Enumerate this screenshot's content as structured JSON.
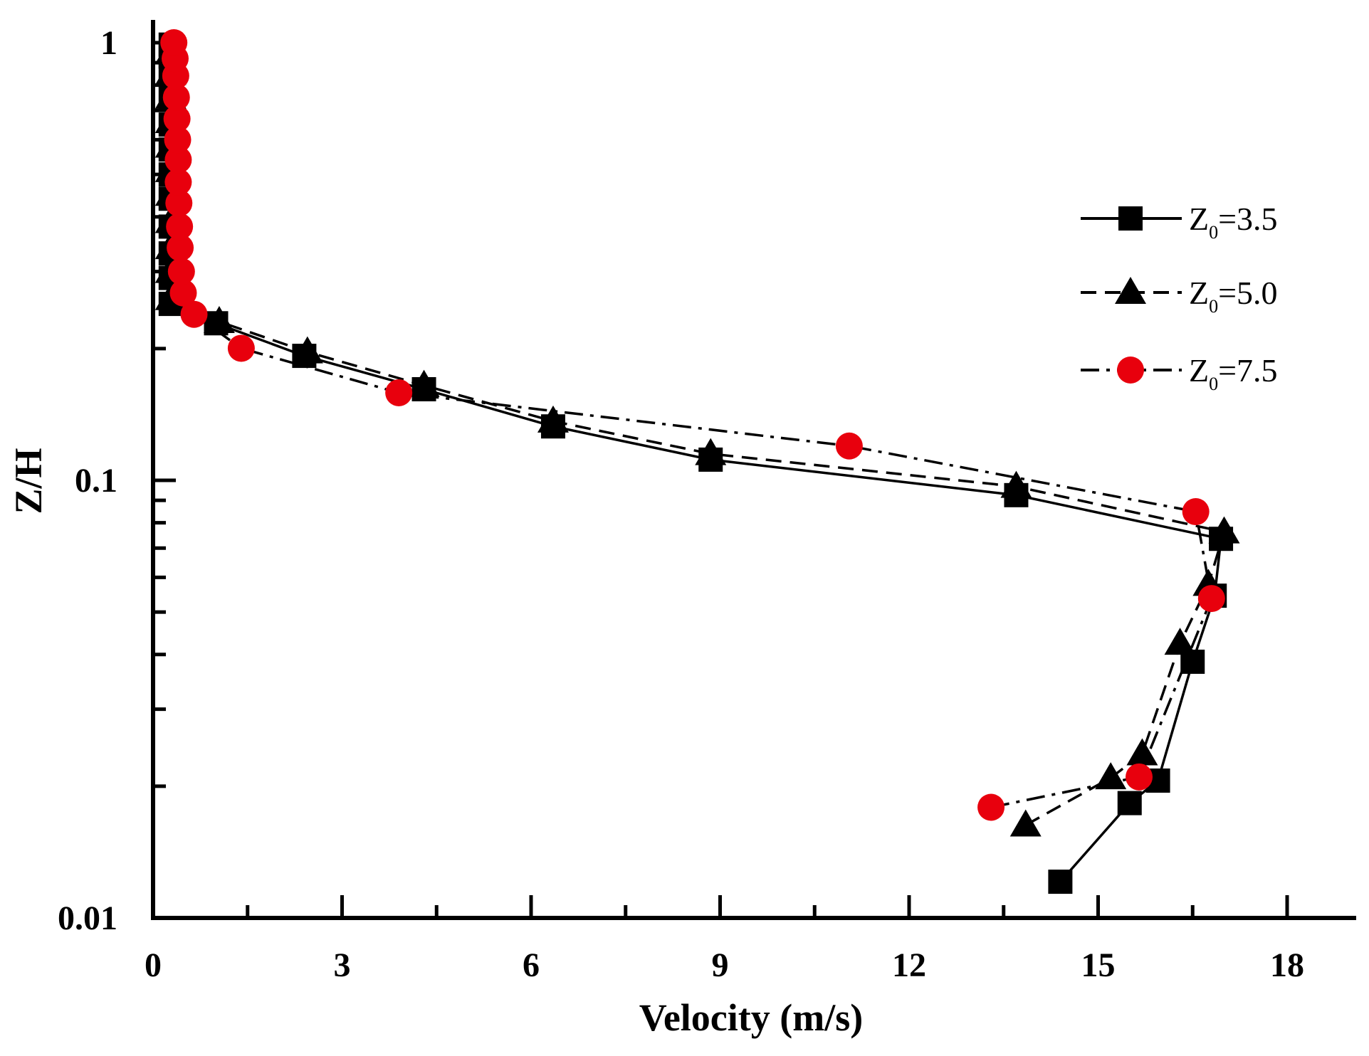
{
  "chart_data": {
    "type": "line",
    "title": "",
    "xlabel": "Velocity (m/s)",
    "ylabel": "Z/H",
    "xlim": [
      0,
      19
    ],
    "ylim": [
      0.01,
      1.1
    ],
    "yscale": "log",
    "x_ticks": [
      0,
      3,
      6,
      9,
      12,
      15,
      18
    ],
    "x_tick_labels": [
      "0",
      "3",
      "6",
      "9",
      "12",
      "15",
      "18"
    ],
    "y_ticks": [
      0.01,
      0.1,
      1
    ],
    "y_tick_labels": [
      "0.01",
      "0.1",
      "1"
    ],
    "legend_position": "right",
    "series": [
      {
        "name": "Z0=3.5",
        "legend_main": "Z",
        "legend_sub": "0",
        "legend_value": "=3.5",
        "color": "#000000",
        "marker": "square",
        "dash": "solid",
        "points": [
          [
            14.4,
            0.0121
          ],
          [
            15.5,
            0.0183
          ],
          [
            15.95,
            0.0206
          ],
          [
            16.5,
            0.0385
          ],
          [
            16.85,
            0.0545
          ],
          [
            16.95,
            0.0735
          ],
          [
            13.7,
            0.0925
          ],
          [
            8.85,
            0.1115
          ],
          [
            6.35,
            0.1328
          ],
          [
            4.3,
            0.1615
          ],
          [
            2.4,
            0.1925
          ],
          [
            1.0,
            0.2285
          ],
          [
            0.28,
            0.253
          ],
          [
            0.28,
            0.29
          ],
          [
            0.28,
            0.33
          ],
          [
            0.28,
            0.38
          ],
          [
            0.28,
            0.44
          ],
          [
            0.28,
            0.5
          ],
          [
            0.28,
            0.57
          ],
          [
            0.28,
            0.65
          ],
          [
            0.28,
            0.74
          ],
          [
            0.28,
            0.84
          ],
          [
            0.28,
            0.93
          ],
          [
            0.28,
            0.99
          ]
        ]
      },
      {
        "name": "Z0=5.0",
        "legend_main": "Z",
        "legend_sub": "0",
        "legend_value": "=5.0",
        "color": "#000000",
        "marker": "triangle",
        "dash": "dashed",
        "points": [
          [
            13.85,
            0.0163
          ],
          [
            15.2,
            0.0209
          ],
          [
            15.7,
            0.0237
          ],
          [
            16.3,
            0.0424
          ],
          [
            16.75,
            0.0578
          ],
          [
            17.0,
            0.0762
          ],
          [
            13.7,
            0.0968
          ],
          [
            8.85,
            0.115
          ],
          [
            6.35,
            0.1365
          ],
          [
            4.3,
            0.1648
          ],
          [
            2.45,
            0.1965
          ],
          [
            1.05,
            0.2305
          ],
          [
            0.28,
            0.26
          ],
          [
            0.28,
            0.3
          ],
          [
            0.28,
            0.34
          ],
          [
            0.28,
            0.39
          ],
          [
            0.28,
            0.45
          ],
          [
            0.28,
            0.51
          ],
          [
            0.28,
            0.58
          ],
          [
            0.28,
            0.66
          ],
          [
            0.28,
            0.75
          ],
          [
            0.28,
            0.85
          ],
          [
            0.28,
            0.95
          ]
        ]
      },
      {
        "name": "Z0=7.5",
        "legend_main": "Z",
        "legend_sub": "0",
        "legend_value": "=7.5",
        "color": "#e8000d",
        "marker": "circle",
        "dash": "dashdot",
        "points": [
          [
            13.3,
            0.0179
          ],
          [
            15.65,
            0.021
          ],
          [
            16.8,
            0.0537
          ],
          [
            16.55,
            0.0848
          ],
          [
            11.05,
            0.1198
          ],
          [
            3.9,
            0.1585
          ],
          [
            1.4,
            0.2003
          ],
          [
            0.65,
            0.2395
          ],
          [
            0.48,
            0.268
          ],
          [
            0.45,
            0.3
          ],
          [
            0.43,
            0.34
          ],
          [
            0.42,
            0.38
          ],
          [
            0.41,
            0.43
          ],
          [
            0.4,
            0.48
          ],
          [
            0.4,
            0.54
          ],
          [
            0.39,
            0.6
          ],
          [
            0.38,
            0.67
          ],
          [
            0.37,
            0.75
          ],
          [
            0.36,
            0.84
          ],
          [
            0.35,
            0.92
          ],
          [
            0.33,
            1.0
          ]
        ]
      }
    ]
  }
}
